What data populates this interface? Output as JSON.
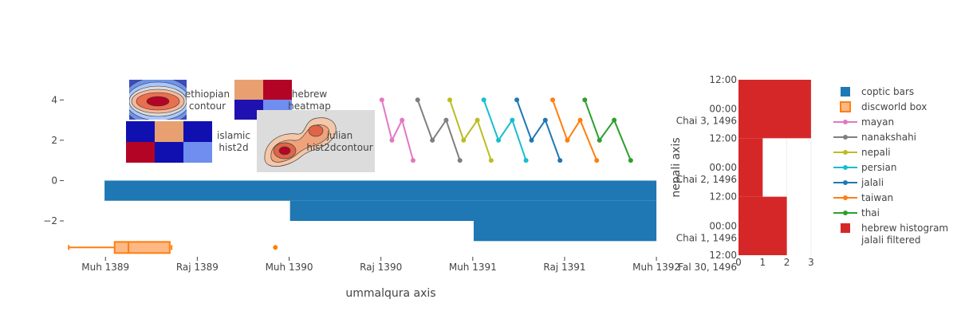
{
  "chart_data": {
    "type": "mixed",
    "main_axes": {
      "xlabel": "ummalqura axis",
      "x_ticks": [
        "Muh 1389",
        "Raj 1389",
        "Muh 1390",
        "Raj 1390",
        "Muh 1391",
        "Raj 1391",
        "Muh 1392"
      ],
      "y_ticks": [
        "4",
        "2",
        "0",
        "−2"
      ],
      "ylim": [
        -3.7,
        5.0
      ],
      "xlim": [
        -0.28,
        6.06
      ]
    },
    "bars": {
      "name": "coptic bars",
      "color": "#1f77b4",
      "orientation": "horizontal",
      "bars": [
        {
          "y": 0,
          "from": -0.01,
          "to": 6.0
        },
        {
          "y": -1,
          "from": 2.01,
          "to": 6.0
        },
        {
          "y": -2,
          "from": 4.01,
          "to": 6.0
        }
      ]
    },
    "box": {
      "name": "discworld box",
      "color": "#ff7f0e",
      "fill": "#fdb885",
      "y": -3,
      "whisker_low": -0.4,
      "q1": 0.1,
      "median": 0.25,
      "q3": 0.7,
      "whisker_high": 0.72,
      "outlier": 1.85
    },
    "line_series": [
      {
        "name": "mayan",
        "color": "#e377c2",
        "x": [
          3.01,
          3.12,
          3.23,
          3.35
        ],
        "y": [
          4,
          2,
          3,
          1
        ]
      },
      {
        "name": "nanakshahi",
        "color": "#7f7f7f",
        "x": [
          3.4,
          3.56,
          3.71,
          3.86
        ],
        "y": [
          4,
          2,
          3,
          1
        ]
      },
      {
        "name": "nepali",
        "color": "#bcbd22",
        "x": [
          3.75,
          3.9,
          4.05,
          4.2
        ],
        "y": [
          4,
          2,
          3,
          1
        ]
      },
      {
        "name": "persian",
        "color": "#17becf",
        "x": [
          4.12,
          4.28,
          4.43,
          4.58
        ],
        "y": [
          4,
          2,
          3,
          1
        ]
      },
      {
        "name": "jalali",
        "color": "#1f77b4",
        "x": [
          4.48,
          4.64,
          4.79,
          4.95
        ],
        "y": [
          4,
          2,
          3,
          1
        ]
      },
      {
        "name": "taiwan",
        "color": "#ff7f0e",
        "x": [
          4.87,
          5.03,
          5.17,
          5.35
        ],
        "y": [
          4,
          2,
          3,
          1
        ]
      },
      {
        "name": "thai",
        "color": "#2ca02c",
        "x": [
          5.22,
          5.38,
          5.54,
          5.72
        ],
        "y": [
          4,
          2,
          3,
          1
        ]
      }
    ],
    "insets": [
      {
        "name": "ethiopian contour",
        "label_lines": [
          "ethiopian",
          "contour"
        ]
      },
      {
        "name": "hebrew heatmap",
        "label_lines": [
          "hebrew",
          "heatmap"
        ],
        "cells": [
          [
            "#e8a070",
            "#b40426"
          ],
          [
            "#1f10b0",
            "#6f8ef0"
          ]
        ]
      },
      {
        "name": "islamic hist2d",
        "label_lines": [
          "islamic",
          "hist2d"
        ],
        "cells": [
          [
            "#1010b0",
            "#e8a070",
            "#1010b0"
          ],
          [
            "#b40426",
            "#1010b0",
            "#6f8ef0"
          ]
        ]
      },
      {
        "name": "julian hist2dcontour",
        "label_lines": [
          "julian",
          "hist2dcontour"
        ]
      }
    ],
    "histogram": {
      "name": "hebrew histogram jalali filtered",
      "label_lines": [
        "hebrew histogram",
        "jalali filtered"
      ],
      "color": "#d62728",
      "ylabel": "nepali axis",
      "x_ticks": [
        "0",
        "1",
        "2",
        "3"
      ],
      "xlim": [
        0,
        3.3
      ],
      "y_ticks": [
        {
          "lines": [
            "12:00"
          ]
        },
        {
          "lines": [
            "00:00",
            "Chai 3, 1496"
          ]
        },
        {
          "lines": [
            "12:00"
          ]
        },
        {
          "lines": [
            "00:00",
            "Chai 2, 1496"
          ]
        },
        {
          "lines": [
            "12:00"
          ]
        },
        {
          "lines": [
            "00:00",
            "Chai 1, 1496"
          ]
        },
        {
          "lines": [
            "12:00",
            "Fal 30, 1496"
          ]
        }
      ],
      "bins": [
        {
          "from_tick": 0,
          "to_tick": 2,
          "count": 3
        },
        {
          "from_tick": 2,
          "to_tick": 4,
          "count": 1
        },
        {
          "from_tick": 4,
          "to_tick": 6,
          "count": 2
        }
      ]
    },
    "legend": {
      "placement": "top-right",
      "items": [
        {
          "label": "coptic bars",
          "kind": "bar",
          "color": "#1f77b4"
        },
        {
          "label": "discworld box",
          "kind": "box",
          "color": "#ff7f0e",
          "fill": "#fdb885"
        },
        {
          "label": "mayan",
          "kind": "line",
          "color": "#e377c2"
        },
        {
          "label": "nanakshahi",
          "kind": "line",
          "color": "#7f7f7f"
        },
        {
          "label": "nepali",
          "kind": "line",
          "color": "#bcbd22"
        },
        {
          "label": "persian",
          "kind": "line",
          "color": "#17becf"
        },
        {
          "label": "jalali",
          "kind": "line",
          "color": "#1f77b4"
        },
        {
          "label": "taiwan",
          "kind": "line",
          "color": "#ff7f0e"
        },
        {
          "label": "thai",
          "kind": "line",
          "color": "#2ca02c"
        },
        {
          "label": "hebrew histogram",
          "label2": "jalali filtered",
          "kind": "bar",
          "color": "#d62728"
        }
      ]
    }
  }
}
